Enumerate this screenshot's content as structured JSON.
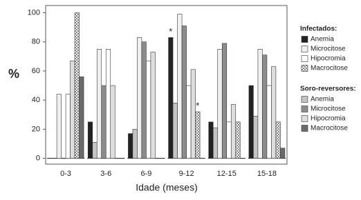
{
  "chart_data": {
    "type": "grouped-bar",
    "y_label": "%",
    "x_label": "Idade (meses)",
    "categories": [
      "0-3",
      "3-6",
      "6-9",
      "9-12",
      "12-15",
      "15-18"
    ],
    "ylim": [
      -4,
      105
    ],
    "yticks": [
      0,
      20,
      40,
      60,
      80,
      100
    ],
    "series_groups": [
      {
        "title": "Infectados:",
        "series": [
          {
            "name": "Anemia",
            "color": "#222222",
            "values": [
              0,
              25,
              17,
              83,
              25,
              50
            ],
            "annotations": [
              null,
              null,
              null,
              "*",
              null,
              null
            ]
          },
          {
            "name": "Microcitose",
            "color": "#f0f0f0",
            "values": [
              44,
              75,
              83,
              99,
              75,
              75
            ]
          },
          {
            "name": "Hipocromia",
            "color": "#ffffff",
            "values": [
              44,
              75,
              67,
              50,
              25,
              50
            ]
          },
          {
            "name": "Macrocitose",
            "color": "#cfcfcf",
            "pattern": "checkered",
            "values": [
              100,
              0,
              0,
              32,
              25,
              25
            ],
            "annotations": [
              null,
              null,
              null,
              "*",
              null,
              null
            ]
          }
        ]
      },
      {
        "title": "Soro-reversores:",
        "series": [
          {
            "name": "Anemia",
            "color": "#c4c4c4",
            "values": [
              0,
              11,
              20,
              38,
              21,
              29
            ]
          },
          {
            "name": "Microcitose",
            "color": "#8c8c8c",
            "values": [
              0,
              50,
              80,
              91,
              79,
              71
            ]
          },
          {
            "name": "Hipocromia",
            "color": "#dedede",
            "values": [
              67,
              50,
              73,
              61,
              37,
              63
            ]
          },
          {
            "name": "Macrocitose",
            "color": "#6a6a6a",
            "values": [
              56,
              0,
              0,
              0,
              0,
              7
            ]
          }
        ]
      }
    ]
  }
}
